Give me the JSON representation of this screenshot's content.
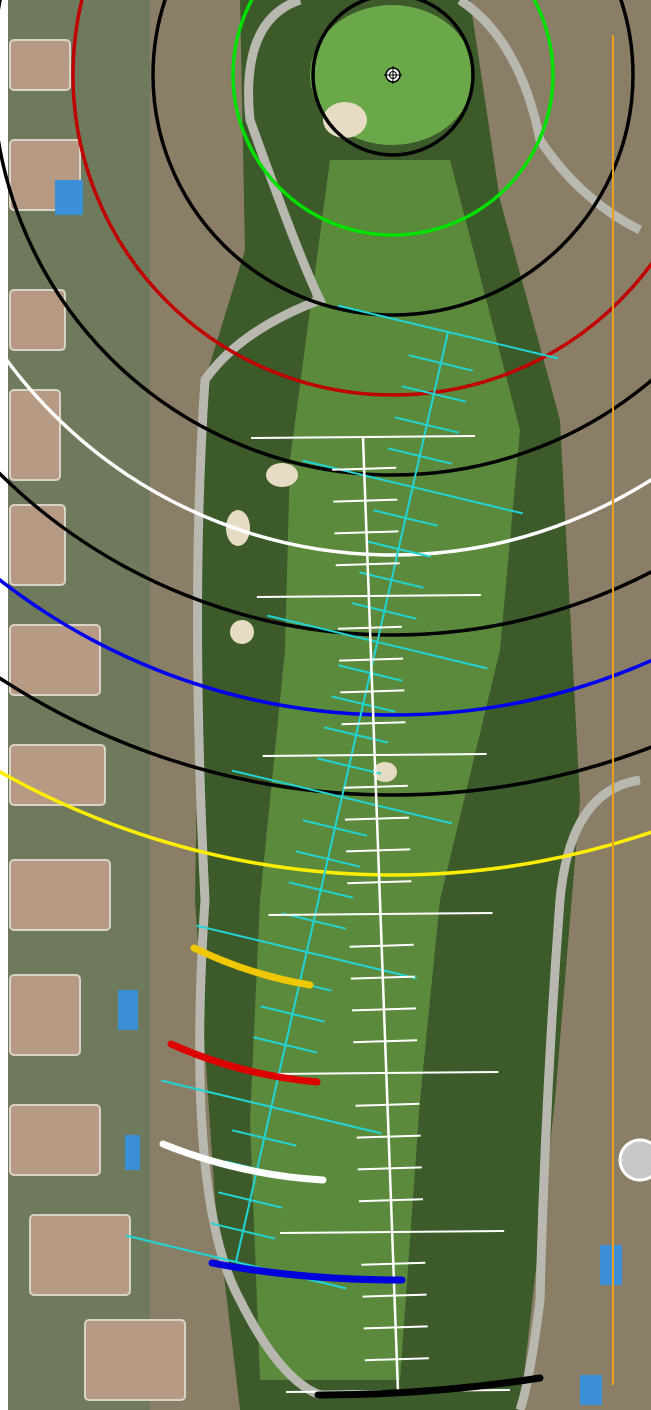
{
  "map": {
    "view": "satellite",
    "subject": "golf-hole-yardage-overlay",
    "colors": {
      "rough": "#3d5a2a",
      "fairway": "#5b8a3c",
      "green": "#6aa84a",
      "sand": "#e6dcc4",
      "path": "#b8b8b0",
      "scrub": "#8a7f66",
      "range_ring_red": "#c00000",
      "range_ring_green": "#00e000",
      "range_ring_black": "#000000",
      "range_ring_white": "#ffffff",
      "range_ring_blue": "#0000ee",
      "range_ring_yellow": "#ffee00",
      "tee_gold": "#f0c800",
      "tee_red": "#dd0000",
      "tee_white": "#ffffff",
      "tee_blue": "#0000dd",
      "tee_black": "#000000",
      "centerline_white": "#ffffff",
      "centerline_cyan": "#22d4d4",
      "out_of_bounds": "#e8a020"
    },
    "icons": {
      "pin": "crosshair-pin-icon"
    }
  }
}
